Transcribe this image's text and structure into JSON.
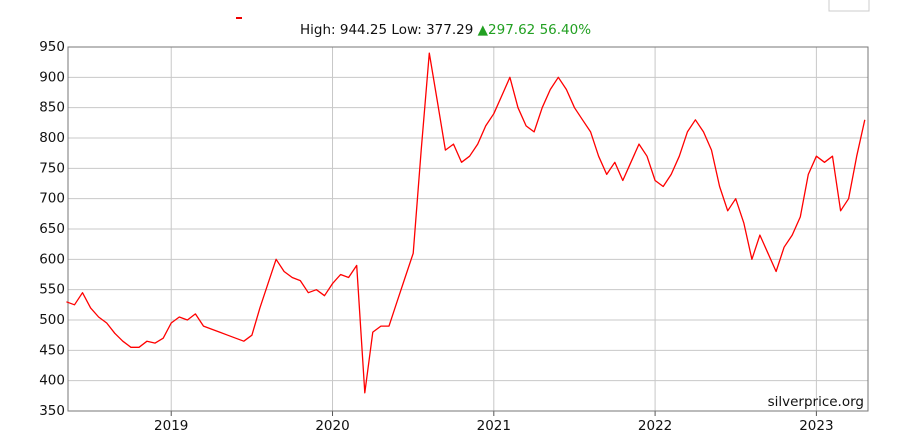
{
  "chart_data": {
    "type": "line",
    "stats": {
      "high": "High: 944.25",
      "low": "Low: 377.29",
      "change": "297.62",
      "change_pct": "56.40%"
    },
    "watermark": "silverprice.org",
    "color": "#ff0000",
    "grid": true,
    "xlim": [
      2018.36,
      2023.32
    ],
    "xticks": [
      2019,
      2020,
      2021,
      2022,
      2023
    ],
    "ylim": [
      350,
      950
    ],
    "yticks": [
      350,
      400,
      450,
      500,
      550,
      600,
      650,
      700,
      750,
      800,
      850,
      900,
      950
    ],
    "x": [
      2018.35,
      2018.4,
      2018.45,
      2018.5,
      2018.55,
      2018.6,
      2018.65,
      2018.7,
      2018.75,
      2018.8,
      2018.85,
      2018.9,
      2018.95,
      2019.0,
      2019.05,
      2019.1,
      2019.15,
      2019.2,
      2019.25,
      2019.3,
      2019.35,
      2019.4,
      2019.45,
      2019.5,
      2019.55,
      2019.6,
      2019.65,
      2019.7,
      2019.75,
      2019.8,
      2019.85,
      2019.9,
      2019.95,
      2020.0,
      2020.05,
      2020.1,
      2020.15,
      2020.2,
      2020.25,
      2020.3,
      2020.35,
      2020.4,
      2020.45,
      2020.5,
      2020.55,
      2020.6,
      2020.65,
      2020.7,
      2020.75,
      2020.8,
      2020.85,
      2020.9,
      2020.95,
      2021.0,
      2021.05,
      2021.1,
      2021.15,
      2021.2,
      2021.25,
      2021.3,
      2021.35,
      2021.4,
      2021.45,
      2021.5,
      2021.55,
      2021.6,
      2021.65,
      2021.7,
      2021.75,
      2021.8,
      2021.85,
      2021.9,
      2021.95,
      2022.0,
      2022.05,
      2022.1,
      2022.15,
      2022.2,
      2022.25,
      2022.3,
      2022.35,
      2022.4,
      2022.45,
      2022.5,
      2022.55,
      2022.6,
      2022.65,
      2022.7,
      2022.75,
      2022.8,
      2022.85,
      2022.9,
      2022.95,
      2023.0,
      2023.05,
      2023.1,
      2023.15,
      2023.2,
      2023.25,
      2023.3
    ],
    "values": [
      530,
      525,
      545,
      520,
      505,
      495,
      478,
      465,
      455,
      455,
      465,
      462,
      470,
      495,
      505,
      500,
      510,
      490,
      485,
      480,
      475,
      470,
      465,
      475,
      520,
      560,
      600,
      580,
      570,
      565,
      545,
      550,
      540,
      560,
      575,
      570,
      590,
      380,
      480,
      490,
      490,
      530,
      570,
      610,
      780,
      940,
      860,
      780,
      790,
      760,
      770,
      790,
      820,
      840,
      870,
      900,
      850,
      820,
      810,
      850,
      880,
      900,
      880,
      850,
      830,
      810,
      770,
      740,
      760,
      730,
      760,
      790,
      770,
      730,
      720,
      740,
      770,
      810,
      830,
      810,
      780,
      720,
      680,
      700,
      660,
      600,
      640,
      610,
      580,
      620,
      640,
      670,
      740,
      770,
      760,
      770,
      680,
      700,
      770,
      830
    ]
  }
}
